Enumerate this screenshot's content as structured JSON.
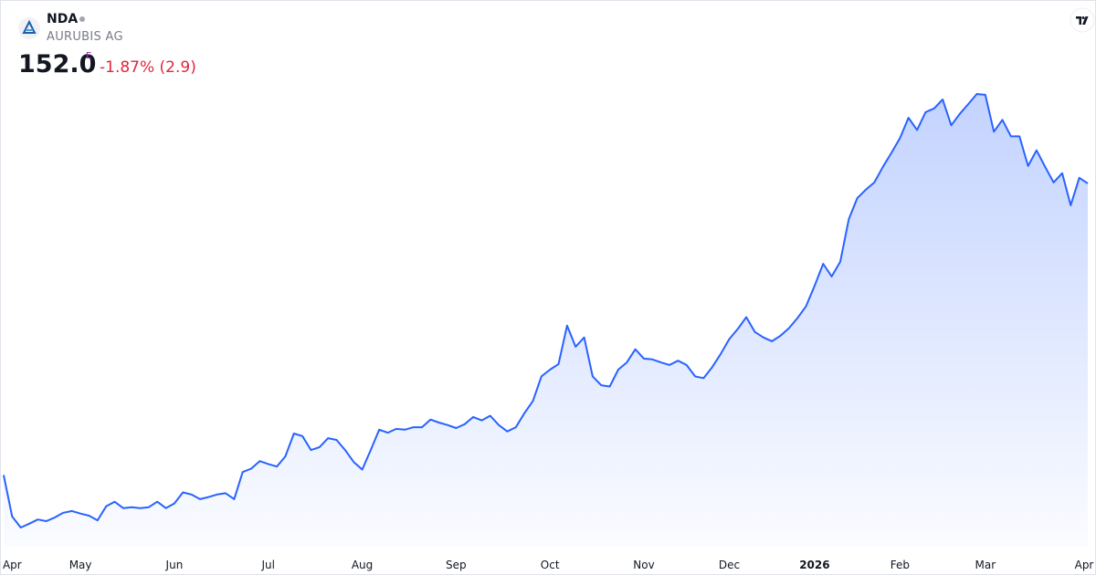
{
  "header": {
    "symbol": "NDA",
    "name": "AURUBIS AG",
    "price": "152.0",
    "badge": "E",
    "change": "-1.87% (2.9)"
  },
  "chart_data": {
    "type": "area",
    "categories": [
      null,
      "Apr",
      null,
      null,
      null,
      null,
      null,
      null,
      null,
      "May",
      null,
      null,
      null,
      null,
      null,
      null,
      null,
      null,
      null,
      null,
      "Jun",
      null,
      null,
      null,
      null,
      null,
      null,
      null,
      null,
      null,
      null,
      "Jul",
      null,
      null,
      null,
      null,
      null,
      null,
      null,
      null,
      null,
      null,
      "Aug",
      null,
      null,
      null,
      null,
      null,
      null,
      null,
      null,
      null,
      null,
      "Sep",
      null,
      null,
      null,
      null,
      null,
      null,
      null,
      null,
      null,
      null,
      "Oct",
      null,
      null,
      null,
      null,
      null,
      null,
      null,
      null,
      null,
      null,
      "Nov",
      null,
      null,
      null,
      null,
      null,
      null,
      null,
      null,
      null,
      "Dec",
      null,
      null,
      null,
      null,
      null,
      null,
      null,
      null,
      null,
      "2026",
      null,
      null,
      null,
      null,
      null,
      null,
      null,
      null,
      null,
      "Feb",
      null,
      null,
      null,
      null,
      null,
      null,
      null,
      null,
      null,
      "Mar",
      null,
      null,
      null,
      null,
      null,
      null,
      null,
      null,
      null,
      null,
      null,
      "Apr"
    ],
    "series": [
      {
        "color": "#2962ff",
        "values": [
          83.1,
          73.3,
          70.7,
          71.6,
          72.6,
          72.2,
          73.1,
          74.2,
          74.6,
          74.0,
          73.5,
          72.4,
          75.7,
          76.8,
          75.3,
          75.5,
          75.3,
          75.5,
          76.8,
          75.3,
          76.4,
          79.0,
          78.5,
          77.4,
          77.9,
          78.5,
          78.8,
          77.4,
          83.8,
          84.6,
          86.4,
          85.7,
          85.1,
          87.5,
          92.9,
          92.3,
          89.0,
          89.7,
          91.8,
          91.4,
          89.0,
          86.2,
          84.4,
          89.0,
          93.8,
          93.1,
          94.0,
          93.8,
          94.4,
          94.4,
          96.2,
          95.5,
          94.9,
          94.2,
          95.1,
          96.8,
          96.0,
          97.1,
          94.9,
          93.4,
          94.4,
          97.7,
          100.6,
          106.4,
          108.0,
          109.3,
          118.4,
          113.4,
          115.6,
          106.4,
          104.3,
          104.0,
          108.0,
          109.7,
          112.8,
          110.6,
          110.4,
          109.7,
          109.1,
          110.1,
          109.1,
          106.4,
          106.0,
          108.6,
          111.7,
          115.2,
          117.6,
          120.4,
          116.9,
          115.6,
          114.7,
          116.0,
          117.8,
          120.2,
          123.0,
          127.8,
          133.0,
          130.0,
          133.5,
          143.5,
          148.5,
          150.5,
          152.2,
          155.9,
          159.2,
          162.7,
          167.5,
          164.6,
          168.8,
          169.7,
          171.8,
          165.7,
          168.4,
          170.7,
          173.1,
          172.9,
          164.2,
          167.0,
          163.1,
          163.1,
          156.1,
          159.8,
          155.9,
          152.2,
          154.4,
          146.8,
          153.3,
          152.0
        ]
      }
    ]
  }
}
